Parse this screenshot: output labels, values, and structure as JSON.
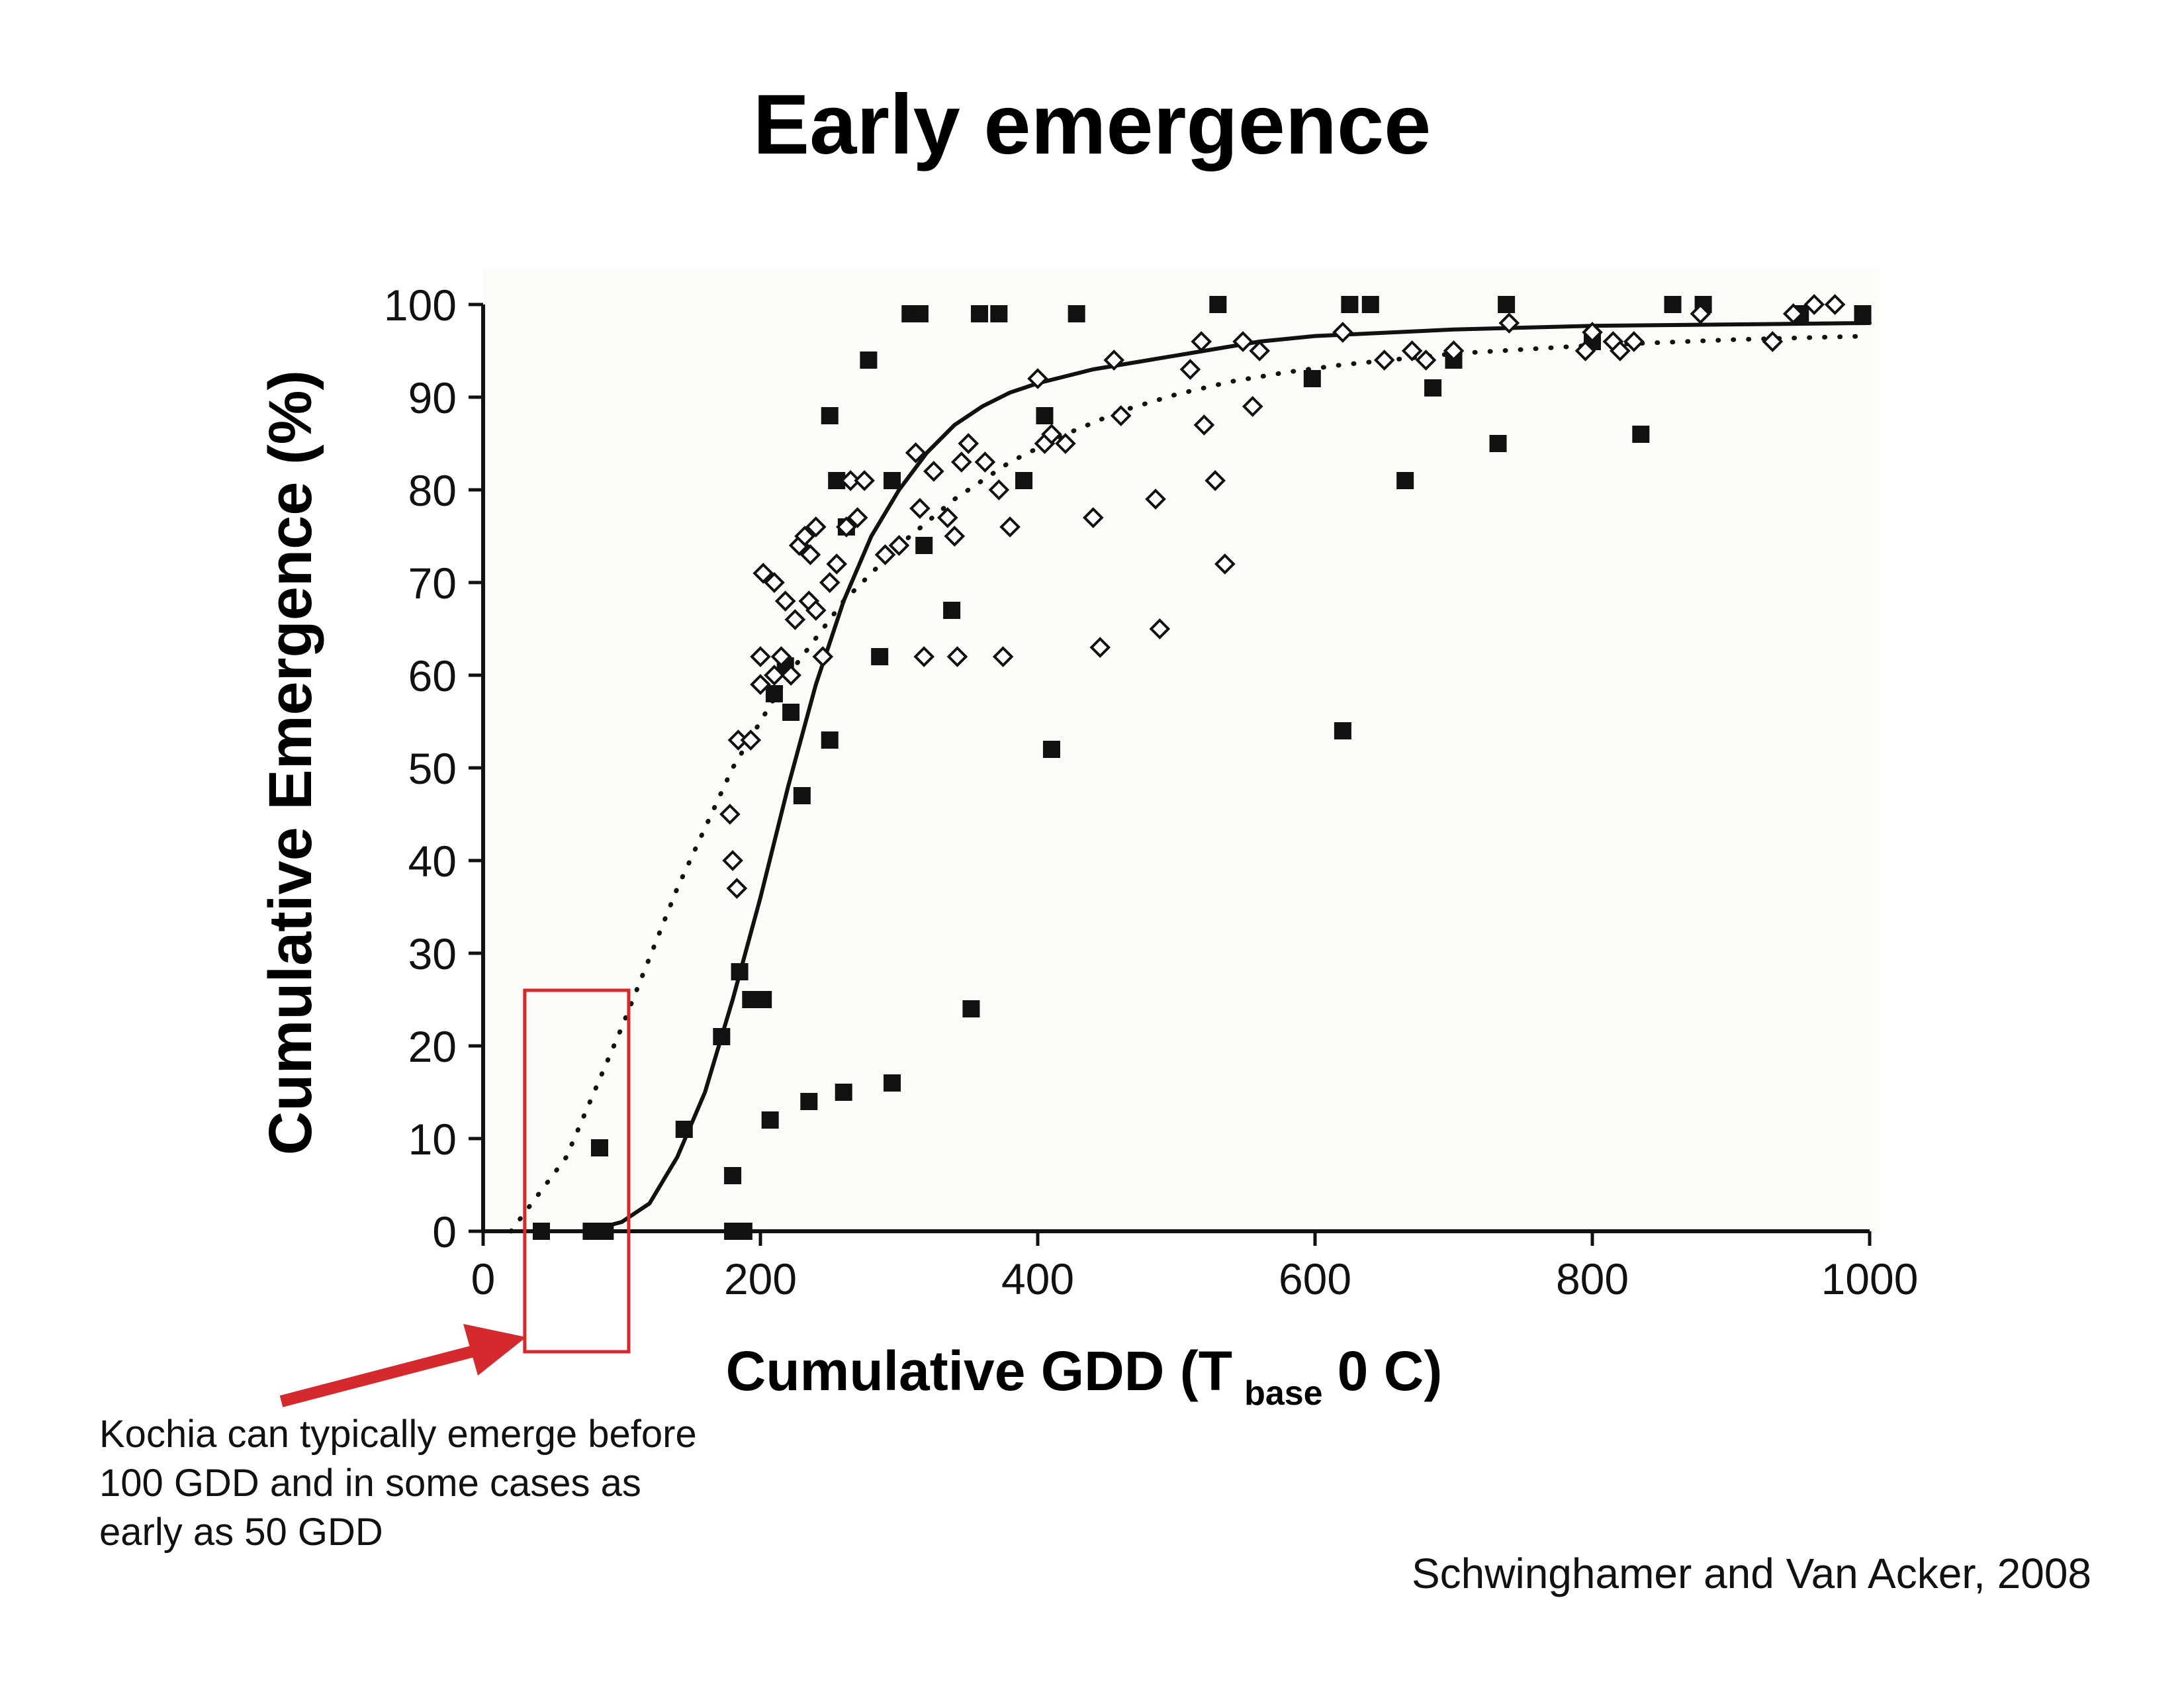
{
  "title": "Early emergence",
  "annotation": "Kochia can typically emerge before 100 GDD and in some cases as early as 50 GDD",
  "source": "Schwinghamer and Van Acker, 2008",
  "colors": {
    "highlight": "#d42a2e",
    "ink": "#111111",
    "plot_bg": "#fbfbf8"
  },
  "chart_data": {
    "type": "scatter",
    "title": "Early emergence",
    "xlabel": "Cumulative GDD (T",
    "xlabel_sub": "base",
    "xlabel_tail": "0 C)",
    "ylabel": "Cumulative Emergence (%)",
    "xlim": [
      0,
      1000
    ],
    "ylim": [
      0,
      100
    ],
    "xticks": [
      0,
      200,
      400,
      600,
      800,
      1000
    ],
    "xtick_labels": [
      "0",
      "200",
      "400",
      "600",
      "800",
      "1000"
    ],
    "yticks": [
      0,
      10,
      20,
      30,
      40,
      50,
      60,
      70,
      80,
      90,
      100
    ],
    "ytick_labels": [
      "0",
      "10",
      "20",
      "30",
      "40",
      "50",
      "60",
      "70",
      "80",
      "90",
      "100"
    ],
    "grid": false,
    "highlight_box": {
      "x_range": [
        30,
        105
      ],
      "y_range": [
        -13,
        26
      ]
    },
    "series": [
      {
        "marker": "filled-square",
        "points": [
          [
            42,
            0
          ],
          [
            78,
            0
          ],
          [
            88,
            0
          ],
          [
            84,
            9
          ],
          [
            145,
            11
          ],
          [
            172,
            21
          ],
          [
            180,
            6
          ],
          [
            180,
            0
          ],
          [
            188,
            0
          ],
          [
            185,
            28
          ],
          [
            193,
            25
          ],
          [
            202,
            25
          ],
          [
            207,
            12
          ],
          [
            210,
            58
          ],
          [
            218,
            61
          ],
          [
            222,
            56
          ],
          [
            230,
            47
          ],
          [
            235,
            14
          ],
          [
            250,
            53
          ],
          [
            250,
            88
          ],
          [
            255,
            81
          ],
          [
            260,
            15
          ],
          [
            262,
            76
          ],
          [
            278,
            94
          ],
          [
            286,
            62
          ],
          [
            295,
            81
          ],
          [
            295,
            16
          ],
          [
            308,
            99
          ],
          [
            315,
            99
          ],
          [
            318,
            74
          ],
          [
            338,
            67
          ],
          [
            352,
            24
          ],
          [
            358,
            99
          ],
          [
            372,
            99
          ],
          [
            390,
            81
          ],
          [
            405,
            88
          ],
          [
            410,
            52
          ],
          [
            428,
            99
          ],
          [
            530,
            100
          ],
          [
            598,
            92
          ],
          [
            620,
            54
          ],
          [
            625,
            100
          ],
          [
            640,
            100
          ],
          [
            665,
            81
          ],
          [
            685,
            91
          ],
          [
            700,
            94
          ],
          [
            732,
            85
          ],
          [
            738,
            100
          ],
          [
            800,
            96
          ],
          [
            835,
            86
          ],
          [
            858,
            100
          ],
          [
            880,
            100
          ],
          [
            950,
            99
          ],
          [
            995,
            99
          ]
        ]
      },
      {
        "marker": "open-diamond",
        "points": [
          [
            178,
            45
          ],
          [
            180,
            40
          ],
          [
            183,
            37
          ],
          [
            184,
            53
          ],
          [
            193,
            53
          ],
          [
            200,
            59
          ],
          [
            200,
            62
          ],
          [
            202,
            71
          ],
          [
            210,
            60
          ],
          [
            210,
            70
          ],
          [
            215,
            62
          ],
          [
            218,
            68
          ],
          [
            222,
            60
          ],
          [
            225,
            66
          ],
          [
            228,
            74
          ],
          [
            232,
            75
          ],
          [
            235,
            68
          ],
          [
            236,
            73
          ],
          [
            240,
            76
          ],
          [
            240,
            67
          ],
          [
            245,
            62
          ],
          [
            250,
            70
          ],
          [
            255,
            72
          ],
          [
            262,
            76
          ],
          [
            265,
            81
          ],
          [
            270,
            77
          ],
          [
            275,
            81
          ],
          [
            290,
            73
          ],
          [
            300,
            74
          ],
          [
            312,
            84
          ],
          [
            315,
            78
          ],
          [
            318,
            62
          ],
          [
            325,
            82
          ],
          [
            335,
            77
          ],
          [
            340,
            75
          ],
          [
            342,
            62
          ],
          [
            345,
            83
          ],
          [
            350,
            85
          ],
          [
            362,
            83
          ],
          [
            372,
            80
          ],
          [
            375,
            62
          ],
          [
            380,
            76
          ],
          [
            400,
            92
          ],
          [
            405,
            85
          ],
          [
            410,
            86
          ],
          [
            420,
            85
          ],
          [
            440,
            77
          ],
          [
            445,
            63
          ],
          [
            455,
            94
          ],
          [
            460,
            88
          ],
          [
            485,
            79
          ],
          [
            488,
            65
          ],
          [
            510,
            93
          ],
          [
            518,
            96
          ],
          [
            520,
            87
          ],
          [
            528,
            81
          ],
          [
            535,
            72
          ],
          [
            548,
            96
          ],
          [
            555,
            89
          ],
          [
            560,
            95
          ],
          [
            620,
            97
          ],
          [
            650,
            94
          ],
          [
            670,
            95
          ],
          [
            680,
            94
          ],
          [
            700,
            95
          ],
          [
            740,
            98
          ],
          [
            795,
            95
          ],
          [
            800,
            97
          ],
          [
            815,
            96
          ],
          [
            820,
            95
          ],
          [
            830,
            96
          ],
          [
            878,
            99
          ],
          [
            930,
            96
          ],
          [
            945,
            99
          ],
          [
            960,
            100
          ],
          [
            975,
            100
          ]
        ]
      },
      {
        "name": "",
        "style": "solid",
        "points": [
          [
            75,
            0
          ],
          [
            100,
            1
          ],
          [
            120,
            3
          ],
          [
            140,
            8
          ],
          [
            160,
            15
          ],
          [
            180,
            25
          ],
          [
            200,
            36
          ],
          [
            220,
            48
          ],
          [
            240,
            59
          ],
          [
            260,
            68
          ],
          [
            280,
            75
          ],
          [
            300,
            80
          ],
          [
            320,
            84
          ],
          [
            340,
            87
          ],
          [
            360,
            89
          ],
          [
            380,
            90.5
          ],
          [
            400,
            91.5
          ],
          [
            440,
            93
          ],
          [
            480,
            94
          ],
          [
            520,
            95
          ],
          [
            560,
            96
          ],
          [
            600,
            96.6
          ],
          [
            700,
            97.3
          ],
          [
            800,
            97.7
          ],
          [
            1000,
            98
          ]
        ]
      },
      {
        "name": "",
        "style": "dotted",
        "points": [
          [
            20,
            0
          ],
          [
            60,
            8
          ],
          [
            100,
            22
          ],
          [
            140,
            37
          ],
          [
            180,
            50
          ],
          [
            220,
            60
          ],
          [
            260,
            68
          ],
          [
            300,
            74
          ],
          [
            340,
            79
          ],
          [
            380,
            83
          ],
          [
            420,
            86
          ],
          [
            460,
            88.5
          ],
          [
            500,
            90.3
          ],
          [
            540,
            91.7
          ],
          [
            580,
            92.7
          ],
          [
            620,
            93.5
          ],
          [
            700,
            94.7
          ],
          [
            800,
            95.6
          ],
          [
            900,
            96.2
          ],
          [
            1000,
            96.6
          ]
        ]
      }
    ]
  }
}
